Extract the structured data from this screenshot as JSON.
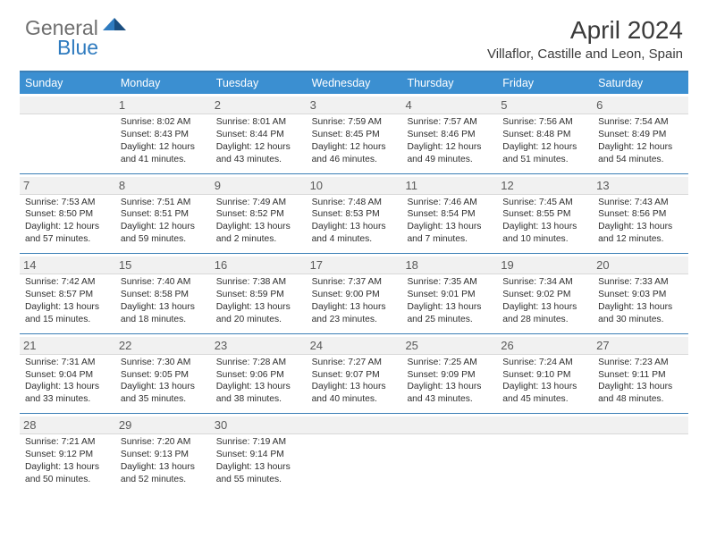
{
  "logo": {
    "gray": "General",
    "blue": "Blue"
  },
  "title": "April 2024",
  "location": "Villaflor, Castille and Leon, Spain",
  "colors": {
    "header_bg": "#3b8fd1",
    "border": "#3b7fb6",
    "daynum_bg": "#f1f1f1",
    "text": "#2e2e2e",
    "logo_gray": "#6f6f6f",
    "logo_blue": "#2f7bbf"
  },
  "weekdays": [
    "Sunday",
    "Monday",
    "Tuesday",
    "Wednesday",
    "Thursday",
    "Friday",
    "Saturday"
  ],
  "weeks": [
    [
      null,
      {
        "n": "1",
        "sr": "8:02 AM",
        "ss": "8:43 PM",
        "dl": "12 hours and 41 minutes."
      },
      {
        "n": "2",
        "sr": "8:01 AM",
        "ss": "8:44 PM",
        "dl": "12 hours and 43 minutes."
      },
      {
        "n": "3",
        "sr": "7:59 AM",
        "ss": "8:45 PM",
        "dl": "12 hours and 46 minutes."
      },
      {
        "n": "4",
        "sr": "7:57 AM",
        "ss": "8:46 PM",
        "dl": "12 hours and 49 minutes."
      },
      {
        "n": "5",
        "sr": "7:56 AM",
        "ss": "8:48 PM",
        "dl": "12 hours and 51 minutes."
      },
      {
        "n": "6",
        "sr": "7:54 AM",
        "ss": "8:49 PM",
        "dl": "12 hours and 54 minutes."
      }
    ],
    [
      {
        "n": "7",
        "sr": "7:53 AM",
        "ss": "8:50 PM",
        "dl": "12 hours and 57 minutes."
      },
      {
        "n": "8",
        "sr": "7:51 AM",
        "ss": "8:51 PM",
        "dl": "12 hours and 59 minutes."
      },
      {
        "n": "9",
        "sr": "7:49 AM",
        "ss": "8:52 PM",
        "dl": "13 hours and 2 minutes."
      },
      {
        "n": "10",
        "sr": "7:48 AM",
        "ss": "8:53 PM",
        "dl": "13 hours and 4 minutes."
      },
      {
        "n": "11",
        "sr": "7:46 AM",
        "ss": "8:54 PM",
        "dl": "13 hours and 7 minutes."
      },
      {
        "n": "12",
        "sr": "7:45 AM",
        "ss": "8:55 PM",
        "dl": "13 hours and 10 minutes."
      },
      {
        "n": "13",
        "sr": "7:43 AM",
        "ss": "8:56 PM",
        "dl": "13 hours and 12 minutes."
      }
    ],
    [
      {
        "n": "14",
        "sr": "7:42 AM",
        "ss": "8:57 PM",
        "dl": "13 hours and 15 minutes."
      },
      {
        "n": "15",
        "sr": "7:40 AM",
        "ss": "8:58 PM",
        "dl": "13 hours and 18 minutes."
      },
      {
        "n": "16",
        "sr": "7:38 AM",
        "ss": "8:59 PM",
        "dl": "13 hours and 20 minutes."
      },
      {
        "n": "17",
        "sr": "7:37 AM",
        "ss": "9:00 PM",
        "dl": "13 hours and 23 minutes."
      },
      {
        "n": "18",
        "sr": "7:35 AM",
        "ss": "9:01 PM",
        "dl": "13 hours and 25 minutes."
      },
      {
        "n": "19",
        "sr": "7:34 AM",
        "ss": "9:02 PM",
        "dl": "13 hours and 28 minutes."
      },
      {
        "n": "20",
        "sr": "7:33 AM",
        "ss": "9:03 PM",
        "dl": "13 hours and 30 minutes."
      }
    ],
    [
      {
        "n": "21",
        "sr": "7:31 AM",
        "ss": "9:04 PM",
        "dl": "13 hours and 33 minutes."
      },
      {
        "n": "22",
        "sr": "7:30 AM",
        "ss": "9:05 PM",
        "dl": "13 hours and 35 minutes."
      },
      {
        "n": "23",
        "sr": "7:28 AM",
        "ss": "9:06 PM",
        "dl": "13 hours and 38 minutes."
      },
      {
        "n": "24",
        "sr": "7:27 AM",
        "ss": "9:07 PM",
        "dl": "13 hours and 40 minutes."
      },
      {
        "n": "25",
        "sr": "7:25 AM",
        "ss": "9:09 PM",
        "dl": "13 hours and 43 minutes."
      },
      {
        "n": "26",
        "sr": "7:24 AM",
        "ss": "9:10 PM",
        "dl": "13 hours and 45 minutes."
      },
      {
        "n": "27",
        "sr": "7:23 AM",
        "ss": "9:11 PM",
        "dl": "13 hours and 48 minutes."
      }
    ],
    [
      {
        "n": "28",
        "sr": "7:21 AM",
        "ss": "9:12 PM",
        "dl": "13 hours and 50 minutes."
      },
      {
        "n": "29",
        "sr": "7:20 AM",
        "ss": "9:13 PM",
        "dl": "13 hours and 52 minutes."
      },
      {
        "n": "30",
        "sr": "7:19 AM",
        "ss": "9:14 PM",
        "dl": "13 hours and 55 minutes."
      },
      null,
      null,
      null,
      null
    ]
  ],
  "labels": {
    "sunrise": "Sunrise:",
    "sunset": "Sunset:",
    "daylight": "Daylight:"
  }
}
